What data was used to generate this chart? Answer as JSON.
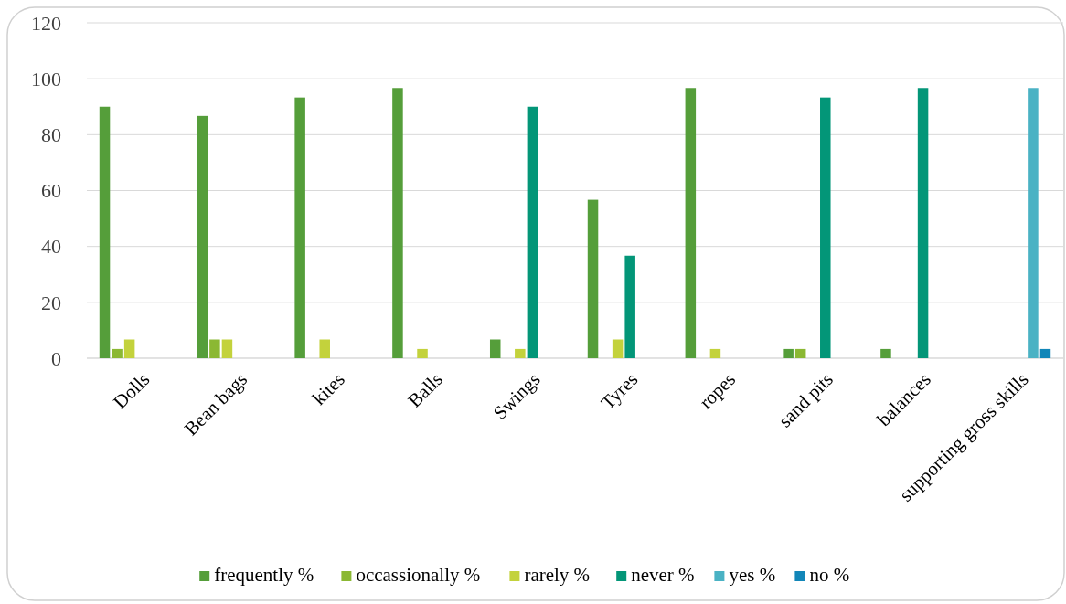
{
  "chart_data": {
    "type": "bar",
    "categories": [
      "Dolls",
      "Bean bags",
      "kites",
      "Balls",
      "Swings",
      "Tyres",
      "ropes",
      "sand pits",
      "balances",
      "supporting gross skills"
    ],
    "series": [
      {
        "name": "frequently %",
        "color": "#559e3a",
        "values": [
          90,
          86.7,
          93.3,
          96.7,
          6.7,
          56.7,
          96.7,
          3.3,
          3.3,
          null
        ]
      },
      {
        "name": "occassionally %",
        "color": "#8bb833",
        "values": [
          3.3,
          6.7,
          null,
          null,
          null,
          null,
          null,
          3.3,
          null,
          null
        ]
      },
      {
        "name": "rarely %",
        "color": "#c3d23c",
        "values": [
          6.7,
          6.7,
          6.7,
          3.3,
          3.3,
          6.7,
          3.3,
          null,
          null,
          null
        ]
      },
      {
        "name": "never %",
        "color": "#039678",
        "values": [
          null,
          null,
          null,
          null,
          90,
          36.7,
          null,
          93.3,
          96.7,
          null
        ]
      },
      {
        "name": "yes %",
        "color": "#4ab2c4",
        "values": [
          null,
          null,
          null,
          null,
          null,
          null,
          null,
          null,
          null,
          96.7
        ]
      },
      {
        "name": "no %",
        "color": "#1286b8",
        "values": [
          null,
          null,
          null,
          null,
          null,
          null,
          null,
          null,
          null,
          3.3
        ]
      }
    ],
    "ylim": [
      0,
      120
    ],
    "yticks": [
      0,
      20,
      40,
      60,
      80,
      100,
      120
    ],
    "grid": "y",
    "legend": "bottom"
  }
}
